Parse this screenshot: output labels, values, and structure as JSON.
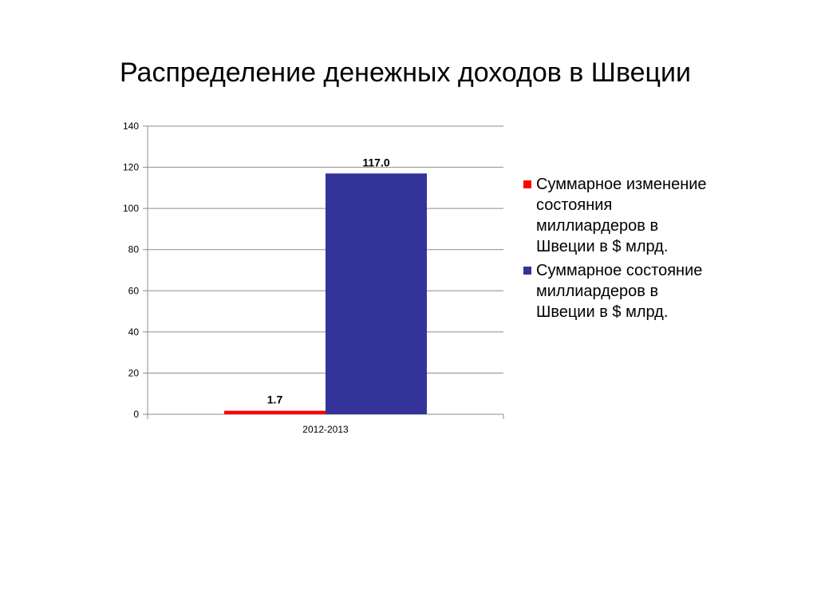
{
  "chart_data": {
    "type": "bar",
    "title": "Распределение денежных доходов в Швеции",
    "categories": [
      "2012-2013"
    ],
    "series": [
      {
        "name": "Суммарное изменение состояния миллиардеров в Швеции в $ млрд.",
        "values": [
          1.7
        ],
        "labels": [
          "1.7"
        ],
        "color": "#ff0000"
      },
      {
        "name": "Суммарное состояние миллиардеров в Швеции в $ млрд.",
        "values": [
          117.0
        ],
        "labels": [
          "117.0"
        ],
        "color": "#333399"
      }
    ],
    "ylim": [
      0,
      140
    ],
    "yticks": [
      "0",
      "20",
      "40",
      "60",
      "80",
      "100",
      "120",
      "140"
    ],
    "xlabel": "",
    "ylabel": "",
    "grid": true,
    "legend_position": "right"
  }
}
